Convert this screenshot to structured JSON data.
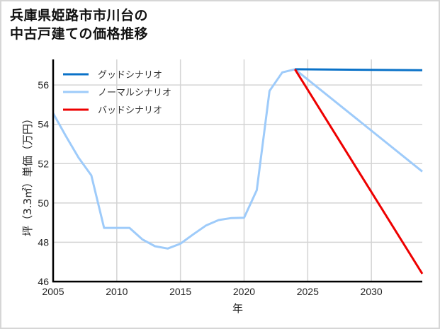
{
  "title": {
    "line1": "兵庫県姫路市市川台の",
    "line2": "中古戸建ての価格推移"
  },
  "axes": {
    "xlabel": "年",
    "ylabel": "坪（3.3㎡）単価（万円）",
    "x_ticks": [
      "2005",
      "2010",
      "2015",
      "2020",
      "2025",
      "2030"
    ],
    "y_ticks": [
      "46",
      "48",
      "50",
      "52",
      "54",
      "56"
    ]
  },
  "legend": [
    {
      "label": "グッドシナリオ",
      "color": "#0a72c8"
    },
    {
      "label": "ノーマルシナリオ",
      "color": "#9ecbfa"
    },
    {
      "label": "バッドシナリオ",
      "color": "#ee0000"
    }
  ],
  "chart_data": {
    "type": "line",
    "title": "兵庫県姫路市市川台の中古戸建ての価格推移",
    "xlabel": "年",
    "ylabel": "坪（3.3㎡）単価（万円）",
    "xlim": [
      2005,
      2034
    ],
    "ylim": [
      46,
      57.3
    ],
    "grid": true,
    "legend_position": "upper left",
    "series": [
      {
        "name": "グッドシナリオ",
        "color": "#0a72c8",
        "x": [
          2024,
          2034
        ],
        "values": [
          56.8,
          56.75
        ]
      },
      {
        "name": "ノーマルシナリオ",
        "color": "#9ecbfa",
        "x": [
          2005,
          2006,
          2007,
          2008,
          2009,
          2010,
          2011,
          2012,
          2013,
          2014,
          2015,
          2016,
          2017,
          2018,
          2019,
          2020,
          2021,
          2022,
          2023,
          2024,
          2034
        ],
        "values": [
          54.56,
          53.4,
          52.3,
          51.4,
          48.73,
          48.73,
          48.73,
          48.15,
          47.8,
          47.68,
          47.93,
          48.4,
          48.85,
          49.13,
          49.23,
          49.25,
          50.65,
          55.7,
          56.64,
          56.8,
          51.6
        ]
      },
      {
        "name": "バッドシナリオ",
        "color": "#ee0000",
        "x": [
          2024,
          2034
        ],
        "values": [
          56.8,
          46.4
        ]
      }
    ]
  }
}
